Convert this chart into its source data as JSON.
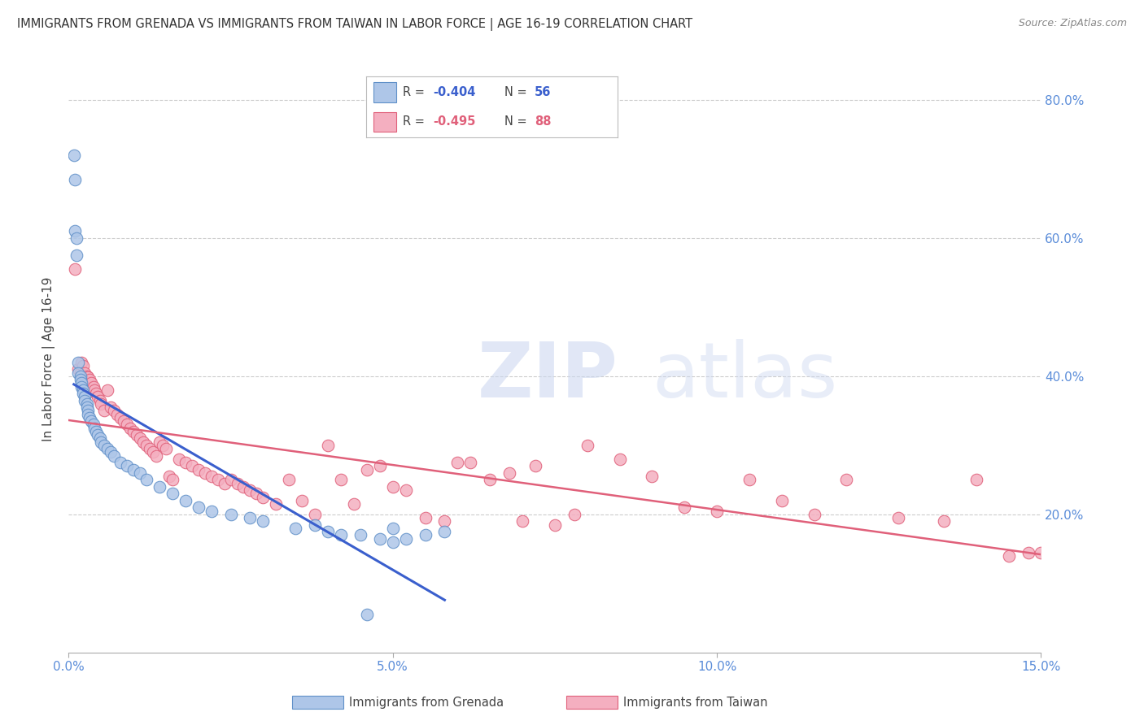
{
  "title": "IMMIGRANTS FROM GRENADA VS IMMIGRANTS FROM TAIWAN IN LABOR FORCE | AGE 16-19 CORRELATION CHART",
  "source": "Source: ZipAtlas.com",
  "ylabel_left": "In Labor Force | Age 16-19",
  "x_tick_labels": [
    "0.0%",
    "5.0%",
    "10.0%",
    "15.0%"
  ],
  "x_tick_vals": [
    0.0,
    5.0,
    10.0,
    15.0
  ],
  "y_tick_labels_right": [
    "20.0%",
    "40.0%",
    "60.0%",
    "80.0%"
  ],
  "y_tick_vals": [
    20.0,
    40.0,
    60.0,
    80.0
  ],
  "xlim": [
    0.0,
    15.0
  ],
  "ylim": [
    0.0,
    85.0
  ],
  "grenada_R": -0.404,
  "grenada_N": 56,
  "taiwan_R": -0.495,
  "taiwan_N": 88,
  "grenada_color": "#aec6e8",
  "taiwan_color": "#f4afc0",
  "grenada_edge": "#6090c8",
  "taiwan_edge": "#e0607a",
  "trend_grenada_color": "#3a5fcd",
  "trend_taiwan_color": "#e0607a",
  "background_color": "#ffffff",
  "grid_color": "#cccccc",
  "axis_color": "#aaaaaa",
  "title_color": "#333333",
  "right_label_color": "#5b8dd9",
  "legend_label1": "Immigrants from Grenada",
  "legend_label2": "Immigrants from Taiwan",
  "grenada_x": [
    0.08,
    0.1,
    0.1,
    0.12,
    0.12,
    0.15,
    0.15,
    0.18,
    0.18,
    0.2,
    0.2,
    0.22,
    0.22,
    0.25,
    0.25,
    0.28,
    0.28,
    0.3,
    0.3,
    0.32,
    0.35,
    0.38,
    0.4,
    0.42,
    0.45,
    0.48,
    0.5,
    0.55,
    0.6,
    0.65,
    0.7,
    0.8,
    0.9,
    1.0,
    1.1,
    1.2,
    1.4,
    1.6,
    1.8,
    2.0,
    2.2,
    2.5,
    2.8,
    3.0,
    3.5,
    3.8,
    4.0,
    4.2,
    4.5,
    4.8,
    5.0,
    5.2,
    5.5,
    5.8,
    4.6,
    5.0
  ],
  "grenada_y": [
    72.0,
    68.5,
    61.0,
    60.0,
    57.5,
    42.0,
    40.5,
    40.0,
    39.5,
    39.0,
    38.5,
    38.0,
    37.5,
    37.0,
    36.5,
    36.0,
    35.5,
    35.0,
    34.5,
    34.0,
    33.5,
    33.0,
    32.5,
    32.0,
    31.5,
    31.0,
    30.5,
    30.0,
    29.5,
    29.0,
    28.5,
    27.5,
    27.0,
    26.5,
    26.0,
    25.0,
    24.0,
    23.0,
    22.0,
    21.0,
    20.5,
    20.0,
    19.5,
    19.0,
    18.0,
    18.5,
    17.5,
    17.0,
    17.0,
    16.5,
    16.0,
    16.5,
    17.0,
    17.5,
    5.5,
    18.0
  ],
  "taiwan_x": [
    0.1,
    0.15,
    0.18,
    0.2,
    0.22,
    0.25,
    0.28,
    0.3,
    0.32,
    0.35,
    0.38,
    0.4,
    0.42,
    0.45,
    0.48,
    0.5,
    0.55,
    0.6,
    0.65,
    0.7,
    0.75,
    0.8,
    0.85,
    0.9,
    0.95,
    1.0,
    1.05,
    1.1,
    1.15,
    1.2,
    1.25,
    1.3,
    1.35,
    1.4,
    1.45,
    1.5,
    1.55,
    1.6,
    1.7,
    1.8,
    1.9,
    2.0,
    2.1,
    2.2,
    2.3,
    2.4,
    2.5,
    2.6,
    2.7,
    2.8,
    2.9,
    3.0,
    3.2,
    3.4,
    3.6,
    3.8,
    4.0,
    4.2,
    4.4,
    4.6,
    4.8,
    5.0,
    5.2,
    5.5,
    5.8,
    6.0,
    6.5,
    7.0,
    7.5,
    8.0,
    8.5,
    9.0,
    9.5,
    10.0,
    10.5,
    11.0,
    11.5,
    12.0,
    12.8,
    13.5,
    14.0,
    14.5,
    14.8,
    15.0,
    6.2,
    6.8,
    7.2,
    7.8
  ],
  "taiwan_y": [
    55.5,
    41.0,
    40.5,
    42.0,
    41.5,
    40.5,
    40.0,
    39.8,
    39.5,
    39.0,
    38.5,
    38.0,
    37.5,
    37.0,
    36.5,
    36.0,
    35.0,
    38.0,
    35.5,
    35.0,
    34.5,
    34.0,
    33.5,
    33.0,
    32.5,
    32.0,
    31.5,
    31.0,
    30.5,
    30.0,
    29.5,
    29.0,
    28.5,
    30.5,
    30.0,
    29.5,
    25.5,
    25.0,
    28.0,
    27.5,
    27.0,
    26.5,
    26.0,
    25.5,
    25.0,
    24.5,
    25.0,
    24.5,
    24.0,
    23.5,
    23.0,
    22.5,
    21.5,
    25.0,
    22.0,
    20.0,
    30.0,
    25.0,
    21.5,
    26.5,
    27.0,
    24.0,
    23.5,
    19.5,
    19.0,
    27.5,
    25.0,
    19.0,
    18.5,
    30.0,
    28.0,
    25.5,
    21.0,
    20.5,
    25.0,
    22.0,
    20.0,
    25.0,
    19.5,
    19.0,
    25.0,
    14.0,
    14.5,
    14.5,
    27.5,
    26.0,
    27.0,
    20.0
  ],
  "grenada_trend_x0": 0.08,
  "grenada_trend_x1": 5.8,
  "taiwan_trend_x0": 0.0,
  "taiwan_trend_x1": 15.0
}
